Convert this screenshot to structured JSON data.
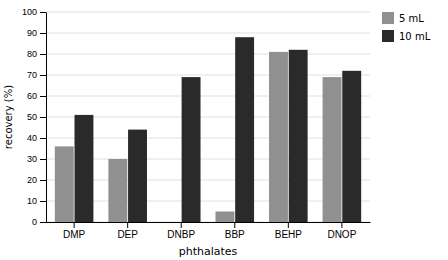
{
  "chart_data": {
    "type": "bar",
    "xlabel": "phthalates",
    "ylabel": "recovery (%)",
    "categories": [
      "DMP",
      "DEP",
      "DNBP",
      "BBP",
      "BEHP",
      "DNOP"
    ],
    "series": [
      {
        "name": "5 mL",
        "color": "#909090",
        "values": [
          36,
          30,
          0,
          5,
          81,
          69
        ]
      },
      {
        "name": "10 mL",
        "color": "#2a2a2a",
        "values": [
          51,
          44,
          69,
          88,
          82,
          72
        ]
      }
    ],
    "ylim": [
      0,
      100
    ],
    "yticks": [
      0,
      10,
      20,
      30,
      40,
      50,
      60,
      70,
      80,
      90,
      100
    ],
    "grid": true,
    "legend": "right"
  }
}
